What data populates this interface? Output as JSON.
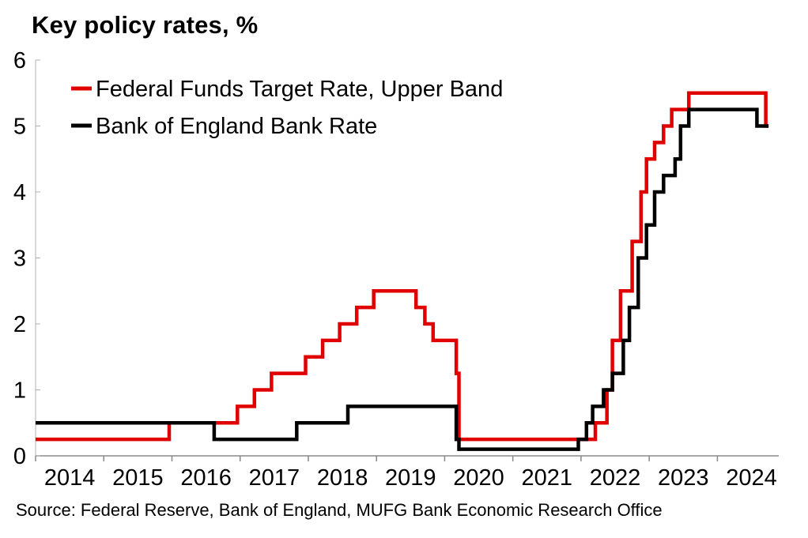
{
  "chart_data": {
    "type": "line",
    "title": "Key policy rates, %",
    "source": "Source: Federal Reserve, Bank of England, MUFG Bank Economic Research Office",
    "xlim": [
      2014.0,
      2024.9
    ],
    "ylim": [
      0,
      6
    ],
    "y_ticks": [
      "0",
      "1",
      "2",
      "3",
      "4",
      "5",
      "6"
    ],
    "x_ticks": [
      "2014",
      "2015",
      "2016",
      "2017",
      "2018",
      "2019",
      "2020",
      "2021",
      "2022",
      "2023",
      "2024"
    ],
    "grid": false,
    "legend": "top-left",
    "step": true,
    "series": [
      {
        "name": "Federal Funds Target Rate, Upper Band",
        "color": "#e00000",
        "points": [
          [
            2014.0,
            0.25
          ],
          [
            2015.96,
            0.5
          ],
          [
            2016.96,
            0.75
          ],
          [
            2017.21,
            1.0
          ],
          [
            2017.46,
            1.25
          ],
          [
            2017.96,
            1.5
          ],
          [
            2018.21,
            1.75
          ],
          [
            2018.46,
            2.0
          ],
          [
            2018.71,
            2.25
          ],
          [
            2018.96,
            2.5
          ],
          [
            2019.58,
            2.25
          ],
          [
            2019.71,
            2.0
          ],
          [
            2019.83,
            1.75
          ],
          [
            2020.17,
            1.25
          ],
          [
            2020.21,
            0.25
          ],
          [
            2022.21,
            0.5
          ],
          [
            2022.38,
            1.0
          ],
          [
            2022.46,
            1.75
          ],
          [
            2022.58,
            2.5
          ],
          [
            2022.75,
            3.25
          ],
          [
            2022.88,
            4.0
          ],
          [
            2022.96,
            4.5
          ],
          [
            2023.08,
            4.75
          ],
          [
            2023.21,
            5.0
          ],
          [
            2023.33,
            5.25
          ],
          [
            2023.58,
            5.5
          ],
          [
            2024.71,
            5.0
          ],
          [
            2024.75,
            5.0
          ]
        ]
      },
      {
        "name": "Bank of England Bank Rate",
        "color": "#000000",
        "points": [
          [
            2014.0,
            0.5
          ],
          [
            2016.62,
            0.25
          ],
          [
            2017.83,
            0.5
          ],
          [
            2018.58,
            0.75
          ],
          [
            2020.17,
            0.25
          ],
          [
            2020.21,
            0.1
          ],
          [
            2021.96,
            0.25
          ],
          [
            2022.08,
            0.5
          ],
          [
            2022.17,
            0.75
          ],
          [
            2022.33,
            1.0
          ],
          [
            2022.46,
            1.25
          ],
          [
            2022.62,
            1.75
          ],
          [
            2022.71,
            2.25
          ],
          [
            2022.84,
            3.0
          ],
          [
            2022.96,
            3.5
          ],
          [
            2023.08,
            4.0
          ],
          [
            2023.21,
            4.25
          ],
          [
            2023.38,
            4.5
          ],
          [
            2023.46,
            5.0
          ],
          [
            2023.58,
            5.25
          ],
          [
            2024.58,
            5.0
          ],
          [
            2024.75,
            5.0
          ]
        ]
      }
    ]
  }
}
